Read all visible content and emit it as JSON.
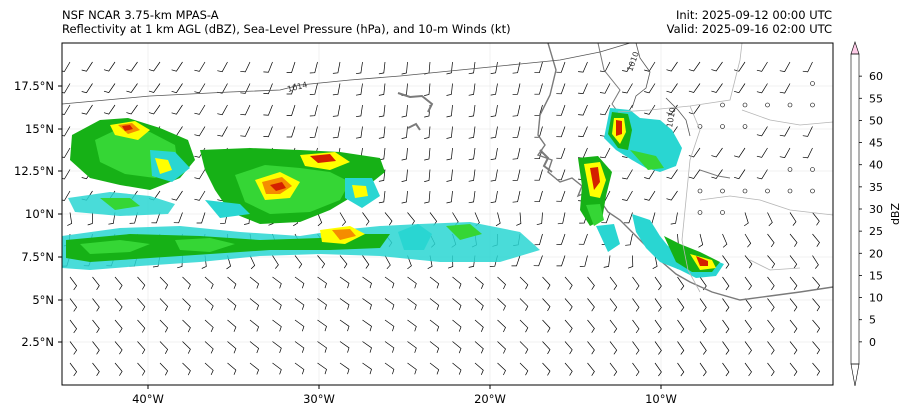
{
  "header": {
    "model": "NSF NCAR 3.75-km MPAS-A",
    "fields": "Reflectivity at 1 km AGL (dBZ), Sea-Level Pressure (hPa), and 10-m Winds (kt)",
    "init": "Init: 2025-09-12 00:00 UTC",
    "valid": "Valid: 2025-09-16 02:00 UTC"
  },
  "axes": {
    "lon_labels": [
      "40°W",
      "30°W",
      "20°W",
      "10°W"
    ],
    "lat_labels": [
      "17.5°N",
      "15°N",
      "12.5°N",
      "10°N",
      "7.5°N",
      "5°N",
      "2.5°N"
    ]
  },
  "isobars": [
    {
      "label": "1014"
    },
    {
      "label": "1010"
    },
    {
      "label": "1010"
    }
  ],
  "colorbar": {
    "title": "dBZ",
    "ticks": [
      "0",
      "5",
      "10",
      "15",
      "20",
      "25",
      "30",
      "35",
      "40",
      "45",
      "50",
      "55",
      "60"
    ],
    "colors": [
      "#0e8c9c",
      "#11b8c8",
      "#29d6d2",
      "#0f8a13",
      "#16b116",
      "#35d635",
      "#ffff00",
      "#f7c200",
      "#f58c00",
      "#d42000",
      "#9a0000",
      "#7a0000",
      "#e600e6",
      "#ffcce8"
    ]
  },
  "chart_data": {
    "type": "map",
    "projection": "PlateCarree",
    "lon_range": [
      -45,
      0
    ],
    "lat_range": [
      0,
      20
    ],
    "reflectivity_regions": [
      {
        "name": "western cluster",
        "lon": [
          -45,
          -37.5
        ],
        "lat": [
          10.5,
          16
        ]
      },
      {
        "name": "central cluster",
        "lon": [
          -35,
          -26.5
        ],
        "lat": [
          9,
          13.5
        ]
      },
      {
        "name": "southern band",
        "lon": [
          -45,
          -20
        ],
        "lat": [
          6.5,
          9.5
        ]
      },
      {
        "name": "African coast storms",
        "lon": [
          -15,
          -9
        ],
        "lat": [
          6,
          16
        ]
      }
    ]
  }
}
